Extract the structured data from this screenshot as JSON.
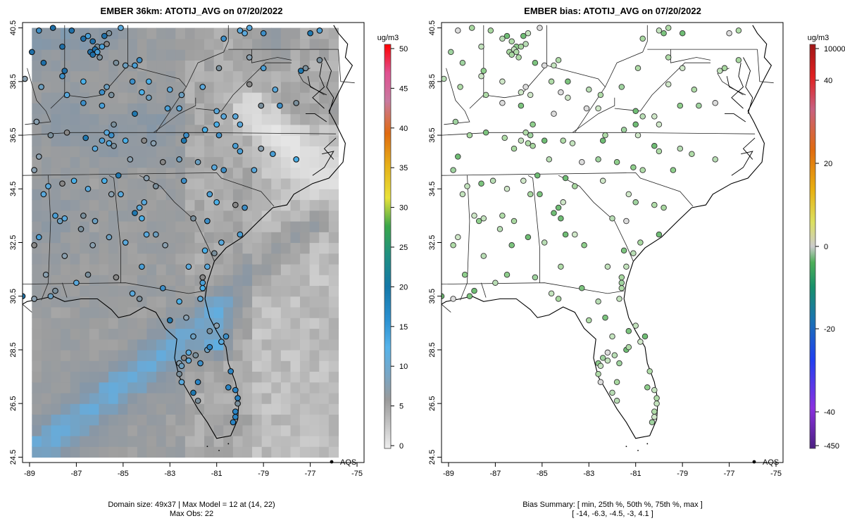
{
  "chart_data": [
    {
      "type": "heatmap",
      "title": "EMBER 36km: ATOTIJ_AVG on 07/20/2022",
      "xlim": [
        -89.3,
        -74.7
      ],
      "ylim": [
        24.3,
        40.7
      ],
      "x_ticks": [
        "-89",
        "-87",
        "-85",
        "-83",
        "-81",
        "-79",
        "-77",
        "-75"
      ],
      "x_tick_values": [
        -89,
        -87,
        -85,
        -83,
        -81,
        -79,
        -77,
        -75
      ],
      "y_ticks": [
        "24.5",
        "26.5",
        "28.5",
        "30.5",
        "32.5",
        "34.5",
        "36.5",
        "38.5",
        "40.5"
      ],
      "y_tick_values": [
        24.5,
        26.5,
        28.5,
        30.5,
        32.5,
        34.5,
        36.5,
        38.5,
        40.5
      ],
      "colorbar": {
        "unit": "ug/m3",
        "ticks": [
          "0",
          "5",
          "10",
          "15",
          "20",
          "25",
          "30",
          "35",
          "40",
          "45",
          "50"
        ],
        "tick_values": [
          0,
          5,
          10,
          15,
          20,
          25,
          30,
          35,
          40,
          45,
          50
        ],
        "range": [
          0,
          50
        ]
      },
      "legend_label": "AQS",
      "footer_line1": "Domain size: 49x37 | Max Model = 12 at (14, 22)",
      "footer_line2": "Max Obs: 22"
    },
    {
      "type": "scatter",
      "title": "EMBER bias: ATOTIJ_AVG on 07/20/2022",
      "xlim": [
        -89.3,
        -74.7
      ],
      "ylim": [
        24.3,
        40.7
      ],
      "x_ticks": [
        "-89",
        "-87",
        "-85",
        "-83",
        "-81",
        "-79",
        "-77",
        "-75"
      ],
      "x_tick_values": [
        -89,
        -87,
        -85,
        -83,
        -81,
        -79,
        -77,
        -75
      ],
      "y_ticks": [
        "24.5",
        "26.5",
        "28.5",
        "30.5",
        "32.5",
        "34.5",
        "36.5",
        "38.5",
        "40.5"
      ],
      "y_tick_values": [
        24.5,
        26.5,
        28.5,
        30.5,
        32.5,
        34.5,
        36.5,
        38.5,
        40.5
      ],
      "colorbar": {
        "unit": "ug/m3",
        "ticks": [
          "-450",
          "-40",
          "-20",
          "0",
          "20",
          "40",
          "10000"
        ],
        "tick_values": [
          -450,
          -40,
          -20,
          0,
          20,
          40,
          10000
        ]
      },
      "legend_label": "AQS",
      "footer_line1": "Bias Summary: [ min, 25th %, 50th %, 75th %, max ]",
      "footer_line2": "[ -14,   -6.3,   -4.5,   -3,   4.1 ]",
      "bias_summary": {
        "min": -14,
        "p25": -6.3,
        "p50": -4.5,
        "p75": -3,
        "max": 4.1
      }
    }
  ],
  "stations": [
    [
      -88.6,
      40.4
    ],
    [
      -88.0,
      40.5
    ],
    [
      -87.2,
      40.4
    ],
    [
      -86.7,
      40.1
    ],
    [
      -86.5,
      40.2
    ],
    [
      -86.3,
      40.0
    ],
    [
      -86.1,
      39.8
    ],
    [
      -85.8,
      40.2
    ],
    [
      -85.6,
      40.3
    ],
    [
      -85.1,
      40.5
    ],
    [
      -87.6,
      39.8
    ],
    [
      -86.2,
      39.7
    ],
    [
      -86.4,
      39.6
    ],
    [
      -86.1,
      39.6
    ],
    [
      -85.9,
      39.8
    ],
    [
      -85.7,
      39.9
    ],
    [
      -86.0,
      39.4
    ],
    [
      -86.3,
      39.5
    ],
    [
      -88.9,
      39.6
    ],
    [
      -88.4,
      39.2
    ],
    [
      -87.5,
      38.9
    ],
    [
      -87.6,
      38.7
    ],
    [
      -86.7,
      38.5
    ],
    [
      -85.7,
      38.3
    ],
    [
      -85.9,
      38.1
    ],
    [
      -85.5,
      38.0
    ],
    [
      -84.9,
      39.1
    ],
    [
      -85.3,
      39.2
    ],
    [
      -84.5,
      39.1
    ],
    [
      -84.3,
      39.3
    ],
    [
      -84.6,
      38.5
    ],
    [
      -84.2,
      38.1
    ],
    [
      -83.9,
      38.5
    ],
    [
      -83.0,
      38.2
    ],
    [
      -82.5,
      38.0
    ],
    [
      -81.6,
      38.3
    ],
    [
      -80.9,
      39.0
    ],
    [
      -80.7,
      40.1
    ],
    [
      -80.0,
      40.4
    ],
    [
      -79.8,
      40.3
    ],
    [
      -79.6,
      40.5
    ],
    [
      -79.0,
      40.3
    ],
    [
      -77.0,
      40.3
    ],
    [
      -76.6,
      40.4
    ],
    [
      -76.6,
      39.3
    ],
    [
      -77.2,
      39.0
    ],
    [
      -77.4,
      38.9
    ],
    [
      -79.6,
      39.4
    ],
    [
      -79.0,
      39.0
    ],
    [
      -78.5,
      38.2
    ],
    [
      -88.5,
      38.3
    ],
    [
      -89.2,
      38.6
    ],
    [
      -87.4,
      38.0
    ],
    [
      -86.7,
      37.7
    ],
    [
      -85.9,
      37.6
    ],
    [
      -85.4,
      36.9
    ],
    [
      -84.5,
      37.3
    ],
    [
      -83.9,
      37.9
    ],
    [
      -83.1,
      37.5
    ],
    [
      -82.6,
      37.5
    ],
    [
      -81.0,
      37.4
    ],
    [
      -80.7,
      37.2
    ],
    [
      -80.2,
      37.2
    ],
    [
      -80.0,
      36.9
    ],
    [
      -79.1,
      37.6
    ],
    [
      -78.3,
      37.6
    ],
    [
      -77.6,
      37.7
    ],
    [
      -79.6,
      38.4
    ],
    [
      -88.7,
      37.0
    ],
    [
      -88.1,
      36.5
    ],
    [
      -87.4,
      36.6
    ],
    [
      -86.6,
      36.4
    ],
    [
      -86.2,
      36.0
    ],
    [
      -85.9,
      36.3
    ],
    [
      -85.7,
      36.6
    ],
    [
      -85.6,
      36.2
    ],
    [
      -85.5,
      36.5
    ],
    [
      -85.4,
      36.1
    ],
    [
      -84.9,
      36.3
    ],
    [
      -84.1,
      36.3
    ],
    [
      -83.7,
      36.2
    ],
    [
      -82.4,
      36.3
    ],
    [
      -82.3,
      36.5
    ],
    [
      -81.5,
      36.7
    ],
    [
      -81.0,
      36.9
    ],
    [
      -80.9,
      36.5
    ],
    [
      -80.2,
      36.1
    ],
    [
      -80.0,
      35.9
    ],
    [
      -79.1,
      36.0
    ],
    [
      -78.6,
      35.8
    ],
    [
      -77.6,
      35.6
    ],
    [
      -79.4,
      35.2
    ],
    [
      -80.7,
      35.2
    ],
    [
      -81.1,
      35.3
    ],
    [
      -81.8,
      35.5
    ],
    [
      -82.6,
      35.6
    ],
    [
      -83.3,
      35.5
    ],
    [
      -84.7,
      35.6
    ],
    [
      -85.2,
      35.0
    ],
    [
      -84.0,
      34.9
    ],
    [
      -83.6,
      34.6
    ],
    [
      -82.4,
      34.8
    ],
    [
      -81.3,
      34.3
    ],
    [
      -80.2,
      33.9
    ],
    [
      -79.8,
      33.8
    ],
    [
      -88.6,
      35.7
    ],
    [
      -88.8,
      35.2
    ],
    [
      -87.6,
      34.7
    ],
    [
      -87.1,
      34.8
    ],
    [
      -86.5,
      34.5
    ],
    [
      -85.8,
      34.8
    ],
    [
      -85.5,
      34.3
    ],
    [
      -85.1,
      34.3
    ],
    [
      -84.1,
      34.0
    ],
    [
      -84.3,
      33.8
    ],
    [
      -84.5,
      33.6
    ],
    [
      -84.2,
      33.4
    ],
    [
      -82.0,
      33.4
    ],
    [
      -81.0,
      34.0
    ],
    [
      -81.4,
      33.3
    ],
    [
      -80.0,
      32.8
    ],
    [
      -81.1,
      32.1
    ],
    [
      -81.5,
      32.2
    ],
    [
      -80.8,
      32.5
    ],
    [
      -88.2,
      34.6
    ],
    [
      -88.4,
      34.3
    ],
    [
      -87.9,
      33.5
    ],
    [
      -87.7,
      33.3
    ],
    [
      -87.5,
      33.4
    ],
    [
      -86.7,
      33.5
    ],
    [
      -86.8,
      33.0
    ],
    [
      -86.2,
      33.3
    ],
    [
      -85.6,
      32.7
    ],
    [
      -84.9,
      32.5
    ],
    [
      -84.0,
      32.8
    ],
    [
      -83.6,
      32.8
    ],
    [
      -83.2,
      32.4
    ],
    [
      -82.2,
      31.6
    ],
    [
      -84.2,
      31.6
    ],
    [
      -85.3,
      31.2
    ],
    [
      -86.5,
      31.3
    ],
    [
      -87.0,
      31.0
    ],
    [
      -87.9,
      30.7
    ],
    [
      -88.1,
      30.5
    ],
    [
      -88.8,
      30.4
    ],
    [
      -89.3,
      30.5
    ],
    [
      -88.3,
      31.3
    ],
    [
      -88.8,
      32.4
    ],
    [
      -88.6,
      32.7
    ],
    [
      -87.5,
      32.0
    ],
    [
      -86.3,
      32.4
    ],
    [
      -84.3,
      30.4
    ],
    [
      -84.6,
      30.6
    ],
    [
      -83.3,
      30.8
    ],
    [
      -82.6,
      30.3
    ],
    [
      -81.7,
      30.4
    ],
    [
      -81.6,
      30.8
    ],
    [
      -81.6,
      31.0
    ],
    [
      -81.6,
      31.2
    ],
    [
      -81.4,
      31.6
    ],
    [
      -82.3,
      29.7
    ],
    [
      -83.0,
      29.6
    ],
    [
      -82.0,
      29.0
    ],
    [
      -81.3,
      29.2
    ],
    [
      -81.0,
      29.4
    ],
    [
      -80.6,
      29.0
    ],
    [
      -80.8,
      28.8
    ],
    [
      -82.2,
      28.4
    ],
    [
      -82.4,
      28.2
    ],
    [
      -82.2,
      28.1
    ],
    [
      -82.6,
      28.0
    ],
    [
      -81.9,
      28.3
    ],
    [
      -81.7,
      28.0
    ],
    [
      -81.4,
      28.5
    ],
    [
      -81.3,
      28.6
    ],
    [
      -82.5,
      27.9
    ],
    [
      -82.6,
      27.6
    ],
    [
      -82.5,
      27.3
    ],
    [
      -81.8,
      27.3
    ],
    [
      -80.4,
      27.7
    ],
    [
      -80.5,
      27.1
    ],
    [
      -80.2,
      27.0
    ],
    [
      -80.1,
      26.7
    ],
    [
      -80.2,
      26.2
    ],
    [
      -80.2,
      26.0
    ],
    [
      -80.3,
      25.8
    ],
    [
      -81.8,
      26.6
    ],
    [
      -82.0,
      26.9
    ],
    [
      -80.1,
      26.5
    ]
  ],
  "legend_marker": "black-dot"
}
